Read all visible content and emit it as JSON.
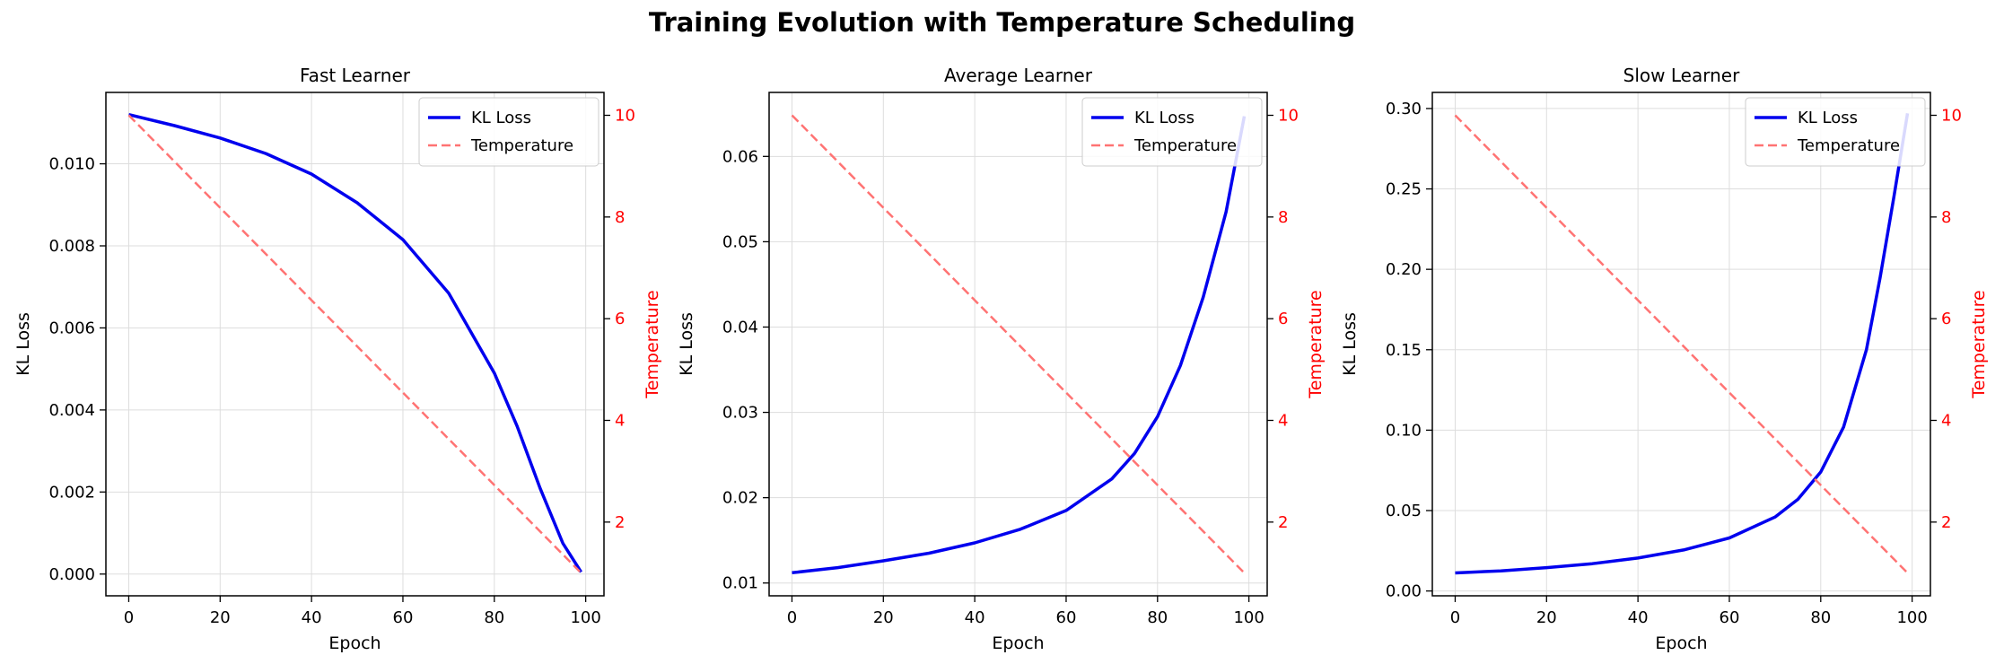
{
  "figure": {
    "title": "Training Evolution with Temperature Scheduling"
  },
  "colors": {
    "loss": "#0000ee",
    "temperature": "#ff7373",
    "temperature_axis": "#ff0000",
    "grid": "#dddddd"
  },
  "chart_data": [
    {
      "type": "line",
      "title": "Fast Learner",
      "xlabel": "Epoch",
      "ylabel": "KL Loss",
      "y2label": "Temperature",
      "xlim": [
        -5,
        104
      ],
      "ylim": [
        -0.00053,
        0.01174
      ],
      "y2lim": [
        0.55,
        10.45
      ],
      "xticks": [
        0,
        20,
        40,
        60,
        80,
        100
      ],
      "yticks": [
        0.0,
        0.002,
        0.004,
        0.006,
        0.008,
        0.01
      ],
      "ytick_labels": [
        "0.000",
        "0.002",
        "0.004",
        "0.006",
        "0.008",
        "0.010"
      ],
      "y2ticks": [
        2,
        4,
        6,
        8,
        10
      ],
      "legend": "top-right",
      "grid": true,
      "series": [
        {
          "name": "KL Loss",
          "axis": "left",
          "style": "solid",
          "x": [
            0,
            10,
            20,
            30,
            40,
            50,
            60,
            70,
            80,
            85,
            90,
            95,
            99
          ],
          "y": [
            0.0112,
            0.01093,
            0.01063,
            0.01025,
            0.00975,
            0.00905,
            0.00815,
            0.00685,
            0.0049,
            0.0036,
            0.0021,
            0.00075,
            5e-05
          ]
        },
        {
          "name": "Temperature",
          "axis": "right",
          "style": "dashed",
          "x": [
            0,
            99
          ],
          "y": [
            10,
            1
          ]
        }
      ]
    },
    {
      "type": "line",
      "title": "Average Learner",
      "xlabel": "Epoch",
      "ylabel": "KL Loss",
      "y2label": "Temperature",
      "xlim": [
        -5,
        104
      ],
      "ylim": [
        0.0085,
        0.0675
      ],
      "y2lim": [
        0.55,
        10.45
      ],
      "xticks": [
        0,
        20,
        40,
        60,
        80,
        100
      ],
      "yticks": [
        0.01,
        0.02,
        0.03,
        0.04,
        0.05,
        0.06
      ],
      "ytick_labels": [
        "0.01",
        "0.02",
        "0.03",
        "0.04",
        "0.05",
        "0.06"
      ],
      "y2ticks": [
        2,
        4,
        6,
        8,
        10
      ],
      "legend": "top-right",
      "grid": true,
      "series": [
        {
          "name": "KL Loss",
          "axis": "left",
          "style": "solid",
          "x": [
            0,
            10,
            20,
            30,
            40,
            50,
            60,
            70,
            75,
            80,
            85,
            90,
            95,
            99
          ],
          "y": [
            0.0112,
            0.0118,
            0.0126,
            0.0135,
            0.0147,
            0.0163,
            0.0185,
            0.0222,
            0.0252,
            0.0295,
            0.0355,
            0.0435,
            0.0535,
            0.0647
          ]
        },
        {
          "name": "Temperature",
          "axis": "right",
          "style": "dashed",
          "x": [
            0,
            99
          ],
          "y": [
            10,
            1
          ]
        }
      ]
    },
    {
      "type": "line",
      "title": "Slow Learner",
      "xlabel": "Epoch",
      "ylabel": "KL Loss",
      "y2label": "Temperature",
      "xlim": [
        -5,
        104
      ],
      "ylim": [
        -0.003,
        0.31
      ],
      "y2lim": [
        0.55,
        10.45
      ],
      "xticks": [
        0,
        20,
        40,
        60,
        80,
        100
      ],
      "yticks": [
        0.0,
        0.05,
        0.1,
        0.15,
        0.2,
        0.25,
        0.3
      ],
      "ytick_labels": [
        "0.00",
        "0.05",
        "0.10",
        "0.15",
        "0.20",
        "0.25",
        "0.30"
      ],
      "y2ticks": [
        2,
        4,
        6,
        8,
        10
      ],
      "legend": "top-right",
      "grid": true,
      "series": [
        {
          "name": "KL Loss",
          "axis": "left",
          "style": "solid",
          "x": [
            0,
            10,
            20,
            30,
            40,
            50,
            60,
            70,
            75,
            80,
            85,
            90,
            93,
            96,
            99
          ],
          "y": [
            0.0112,
            0.0125,
            0.0145,
            0.017,
            0.0205,
            0.0255,
            0.033,
            0.046,
            0.057,
            0.074,
            0.102,
            0.15,
            0.195,
            0.245,
            0.297
          ]
        },
        {
          "name": "Temperature",
          "axis": "right",
          "style": "dashed",
          "x": [
            0,
            99
          ],
          "y": [
            10,
            1
          ]
        }
      ]
    }
  ]
}
